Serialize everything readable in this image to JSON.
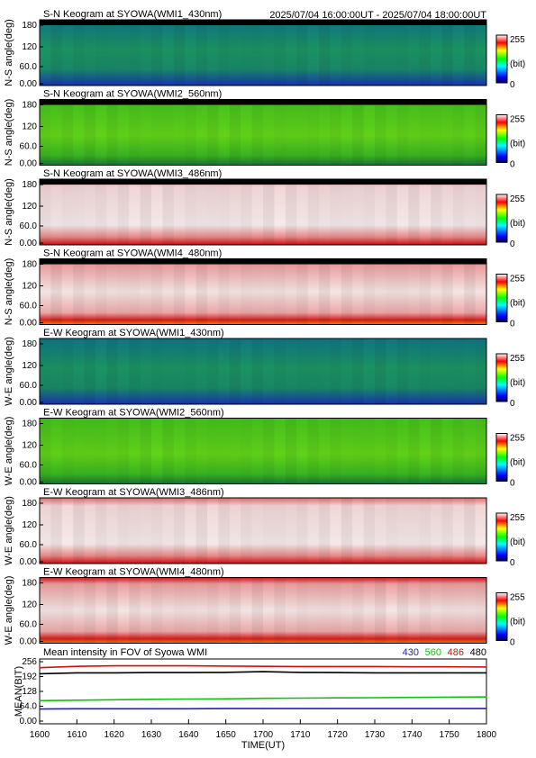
{
  "header": {
    "time_range": "2025/07/04 16:00:00UT - 2025/07/04 18:00:00UT"
  },
  "keograms": [
    {
      "title": "S-N Keogram at SYOWA(WMI1_430nm)",
      "ylabel": "N-S angle(deg)",
      "ticks": [
        "180",
        "120",
        "60.0",
        "0.00"
      ],
      "colormap": "rainbow",
      "dominant_color": "#1fa35a",
      "cbar_ticks": [
        "255",
        "(bit)",
        "0"
      ]
    },
    {
      "title": "S-N Keogram at SYOWA(WMI2_560nm)",
      "ylabel": "N-S angle(deg)",
      "ticks": [
        "180",
        "120",
        "60.0",
        "0.00"
      ],
      "colormap": "rainbow",
      "dominant_color": "#5bd81c",
      "cbar_ticks": [
        "255",
        "(bit)",
        "0"
      ]
    },
    {
      "title": "S-N Keogram at SYOWA(WMI3_486nm)",
      "ylabel": "N-S angle(deg)",
      "ticks": [
        "180",
        "120",
        "60.0",
        "0.00"
      ],
      "colormap": "rainbow",
      "dominant_color": "#fce8e8",
      "cbar_ticks": [
        "255",
        "(bit)",
        "0"
      ]
    },
    {
      "title": "S-N Keogram at SYOWA(WMI4_480nm)",
      "ylabel": "N-S angle(deg)",
      "ticks": [
        "180",
        "120",
        "60.0",
        "0.00"
      ],
      "colormap": "rainbow",
      "dominant_color": "#fbe0e0",
      "cbar_ticks": [
        "255",
        "(bit)",
        "0"
      ]
    },
    {
      "title": "E-W Keogram at SYOWA(WMI1_430nm)",
      "ylabel": "W-E angle(deg)",
      "ticks": [
        "180",
        "120",
        "60.0",
        "0.00"
      ],
      "colormap": "rainbow",
      "dominant_color": "#1fa35a",
      "cbar_ticks": [
        "255",
        "(bit)",
        "0"
      ]
    },
    {
      "title": "E-W Keogram at SYOWA(WMI2_560nm)",
      "ylabel": "W-E angle(deg)",
      "ticks": [
        "180",
        "120",
        "60.0",
        "0.00"
      ],
      "colormap": "rainbow",
      "dominant_color": "#5bd81c",
      "cbar_ticks": [
        "255",
        "(bit)",
        "0"
      ]
    },
    {
      "title": "E-W Keogram at SYOWA(WMI3_486nm)",
      "ylabel": "W-E angle(deg)",
      "ticks": [
        "180",
        "120",
        "60.0",
        "0.00"
      ],
      "colormap": "rainbow",
      "dominant_color": "#fce8e8",
      "cbar_ticks": [
        "255",
        "(bit)",
        "0"
      ]
    },
    {
      "title": "E-W Keogram at SYOWA(WMI4_480nm)",
      "ylabel": "W-E angle(deg)",
      "ticks": [
        "180",
        "120",
        "60.0",
        "0.00"
      ],
      "colormap": "rainbow",
      "dominant_color": "#fbe0e0",
      "cbar_ticks": [
        "255",
        "(bit)",
        "0"
      ]
    }
  ],
  "chart_data": {
    "type": "line",
    "title": "Mean intensity in FOV of Syowa WMI",
    "xlabel": "TIME(UT)",
    "ylabel": "MEAN(BIT)",
    "x": [
      1600,
      1610,
      1620,
      1630,
      1640,
      1650,
      1700,
      1710,
      1720,
      1730,
      1740,
      1750,
      1800
    ],
    "xticks": [
      "1600",
      "1610",
      "1620",
      "1630",
      "1640",
      "1650",
      "1700",
      "1710",
      "1720",
      "1730",
      "1740",
      "1750",
      "1800"
    ],
    "yticks": [
      "256",
      "192",
      "128",
      "64.0",
      "0.00"
    ],
    "ylim": [
      0,
      256
    ],
    "grid": false,
    "legend_placement": "top-right",
    "series": [
      {
        "name": "430",
        "color": "#2020c0",
        "values": [
          52,
          53,
          53,
          53,
          53,
          54,
          54,
          54,
          54,
          54,
          54,
          54,
          54
        ]
      },
      {
        "name": "560",
        "color": "#10c010",
        "values": [
          88,
          90,
          92,
          94,
          95,
          96,
          98,
          99,
          100,
          101,
          102,
          103,
          104
        ]
      },
      {
        "name": "486",
        "color": "#d01010",
        "values": [
          230,
          236,
          238,
          238,
          238,
          237,
          236,
          235,
          235,
          235,
          234,
          234,
          233
        ]
      },
      {
        "name": "480",
        "color": "#000000",
        "values": [
          204,
          208,
          208,
          209,
          209,
          210,
          213,
          210,
          209,
          208,
          208,
          208,
          208
        ]
      }
    ]
  }
}
